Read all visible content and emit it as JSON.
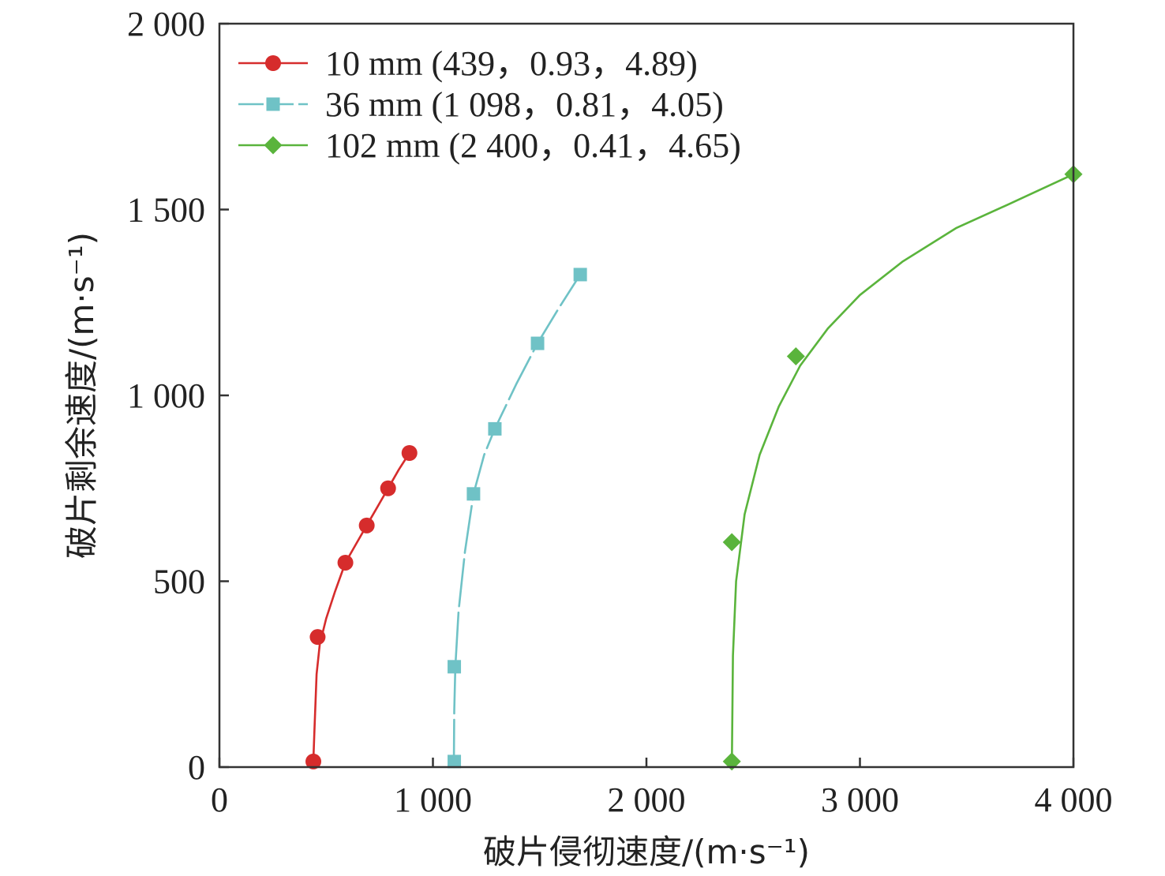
{
  "chart_data": {
    "type": "line",
    "xlabel": "破片侵彻速度/(m·s⁻¹)",
    "ylabel": "破片剩余速度/(m·s⁻¹)",
    "xlim": [
      0,
      4000
    ],
    "ylim": [
      0,
      2000
    ],
    "xticks": [
      0,
      1000,
      2000,
      3000,
      4000
    ],
    "xtick_labels": [
      "0",
      "1 000",
      "2 000",
      "3 000",
      "4 000"
    ],
    "yticks": [
      0,
      500,
      1000,
      1500,
      2000
    ],
    "ytick_labels": [
      "0",
      "500",
      "1 000",
      "1 500",
      "2 000"
    ],
    "grid": false,
    "legend_position": "top-left",
    "series": [
      {
        "name": "10 mm (439，0.93，4.89)",
        "color": "#d62c2c",
        "marker": "circle",
        "dash": "solid",
        "points": [
          [
            440,
            15
          ],
          [
            460,
            350
          ],
          [
            590,
            550
          ],
          [
            690,
            650
          ],
          [
            790,
            750
          ],
          [
            890,
            845
          ]
        ],
        "curve": [
          [
            439,
            0
          ],
          [
            445,
            100
          ],
          [
            455,
            250
          ],
          [
            470,
            330
          ],
          [
            500,
            400
          ],
          [
            540,
            470
          ],
          [
            590,
            550
          ],
          [
            640,
            600
          ],
          [
            690,
            650
          ],
          [
            740,
            700
          ],
          [
            790,
            750
          ],
          [
            840,
            800
          ],
          [
            890,
            845
          ]
        ]
      },
      {
        "name": "36 mm (1 098，0.81，4.05)",
        "color": "#6fc2c6",
        "marker": "square",
        "dash": "dashed",
        "points": [
          [
            1100,
            15
          ],
          [
            1100,
            270
          ],
          [
            1190,
            735
          ],
          [
            1290,
            910
          ],
          [
            1490,
            1140
          ],
          [
            1690,
            1325
          ]
        ],
        "curve": [
          [
            1098,
            0
          ],
          [
            1100,
            150
          ],
          [
            1105,
            270
          ],
          [
            1120,
            420
          ],
          [
            1150,
            580
          ],
          [
            1190,
            735
          ],
          [
            1240,
            840
          ],
          [
            1290,
            910
          ],
          [
            1390,
            1030
          ],
          [
            1490,
            1140
          ],
          [
            1590,
            1235
          ],
          [
            1690,
            1325
          ]
        ]
      },
      {
        "name": "102 mm (2 400，0.41，4.65)",
        "color": "#5ab43c",
        "marker": "diamond",
        "dash": "solid",
        "points": [
          [
            2400,
            15
          ],
          [
            2400,
            605
          ],
          [
            2700,
            1105
          ],
          [
            4000,
            1595
          ]
        ],
        "curve": [
          [
            2400,
            0
          ],
          [
            2405,
            300
          ],
          [
            2420,
            500
          ],
          [
            2460,
            680
          ],
          [
            2530,
            840
          ],
          [
            2620,
            970
          ],
          [
            2720,
            1080
          ],
          [
            2850,
            1180
          ],
          [
            3000,
            1270
          ],
          [
            3200,
            1360
          ],
          [
            3450,
            1450
          ],
          [
            3700,
            1515
          ],
          [
            4000,
            1595
          ]
        ]
      }
    ]
  }
}
